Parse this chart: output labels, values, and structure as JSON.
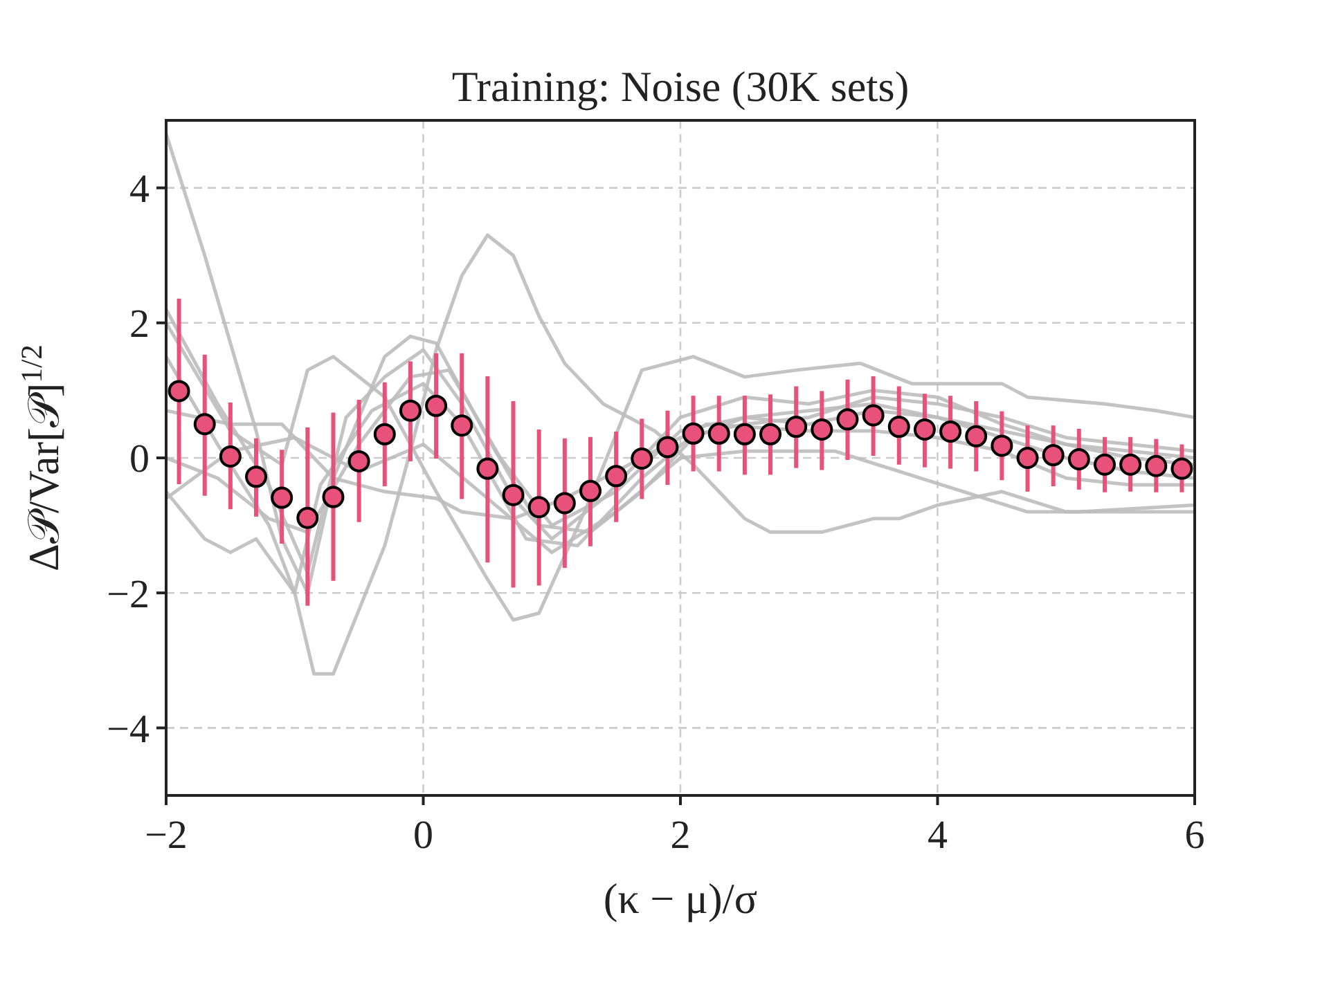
{
  "chart_data": {
    "type": "scatter",
    "title": "Training: Noise (30K sets)",
    "xlabel": "(κ − μ)/σ",
    "ylabel": "Δ𝒫/Var[𝒫]$^{1/2}$",
    "xlim": [
      -2,
      6
    ],
    "ylim": [
      -5,
      5
    ],
    "xticks": [
      {
        "value": -2,
        "label": "−2"
      },
      0,
      2,
      4,
      6
    ],
    "yticks": [
      {
        "value": -4,
        "label": "−4"
      },
      {
        "value": -2,
        "label": "−2"
      },
      0,
      2,
      4
    ],
    "grid": true,
    "series": [
      {
        "type": "line",
        "color": "#bdbdbd",
        "x": [
          -2,
          -1.7,
          -1.3,
          -1.1,
          -0.9,
          -0.7,
          -0.3,
          -0.1,
          0.1,
          0.5,
          0.9,
          1.3,
          1.7,
          2.1,
          2.5,
          3,
          3.5,
          4,
          4.5,
          5,
          5.5,
          6
        ],
        "values": [
          4.8,
          3,
          0.4,
          -1.2,
          -2,
          -0.3,
          1.5,
          1.8,
          1.7,
          0.3,
          -1,
          -1.1,
          -0.5,
          0.3,
          0.6,
          0.7,
          0.8,
          0.6,
          0.4,
          0.2,
          0,
          -0.1
        ]
      },
      {
        "type": "line",
        "color": "#bdbdbd",
        "x": [
          -2,
          -1.7,
          -1.5,
          -1.3,
          -1,
          -0.85,
          -0.7,
          -0.3,
          -0.1,
          0.1,
          0.3,
          0.5,
          0.7,
          0.9,
          1.1,
          1.4,
          1.8,
          2.1,
          2.5,
          2.7,
          3.1,
          3.5,
          3.7,
          4,
          4.5,
          5,
          5.5,
          6
        ],
        "values": [
          -0.5,
          -1.2,
          -1.4,
          -1.2,
          -2,
          -3.2,
          -3.2,
          -1.3,
          0.1,
          1.6,
          2.7,
          3.3,
          3,
          2.1,
          1.4,
          0.8,
          0.4,
          -0.1,
          -0.9,
          -1.1,
          -1.1,
          -0.9,
          -0.9,
          -0.7,
          -0.5,
          -0.8,
          -0.8,
          -0.8
        ]
      },
      {
        "type": "line",
        "color": "#bdbdbd",
        "x": [
          -2,
          -1.5,
          -1.1,
          -0.9,
          -0.7,
          -0.3,
          0.1,
          0.5,
          0.7,
          0.9,
          1.3,
          1.7,
          2.1,
          2.5,
          2.9,
          3.4,
          3.8,
          4.2,
          4.5,
          4.7,
          5.3,
          5.7,
          6
        ],
        "values": [
          2,
          0.4,
          -0.1,
          1.3,
          1.5,
          0.9,
          -0.5,
          -1.8,
          -2.4,
          -2.3,
          -0.6,
          1.3,
          1.5,
          1.2,
          1.3,
          1.4,
          1.1,
          1.1,
          1.1,
          0.9,
          0.8,
          0.7,
          0.6
        ]
      },
      {
        "type": "line",
        "color": "#bdbdbd",
        "x": [
          -2,
          -1.5,
          -1,
          -0.5,
          0,
          0.5,
          1,
          1.5,
          2,
          2.5,
          3.2,
          4.7,
          5.1,
          6
        ],
        "values": [
          -0.6,
          0.1,
          0.3,
          -0.2,
          0.2,
          -0.6,
          -1.4,
          -0.8,
          0,
          0.1,
          0.1,
          -0.8,
          -0.8,
          -0.7
        ]
      },
      {
        "type": "line",
        "color": "#bdbdbd",
        "x": [
          -2,
          -1.5,
          -1.1,
          -0.7,
          -0.3,
          0.1,
          0.3,
          0.7,
          1.1,
          1.5,
          2,
          2.5,
          3,
          3.5,
          4,
          4.5,
          5,
          5.5,
          6
        ],
        "values": [
          0.7,
          0.5,
          0.5,
          -0.3,
          -0.5,
          -0.6,
          -0.8,
          -0.9,
          -0.6,
          -0.2,
          0.3,
          0.5,
          0.6,
          0.9,
          0.8,
          0.6,
          0.3,
          0.2,
          0.1
        ]
      },
      {
        "type": "line",
        "color": "#bdbdbd",
        "x": [
          -2,
          -1.6,
          -1.2,
          -0.9,
          -0.6,
          -0.3,
          0,
          0.3,
          0.7,
          1,
          1.4,
          2,
          2.5,
          3,
          3.5,
          4,
          4.5,
          5,
          5.5,
          6
        ],
        "values": [
          2.2,
          0.8,
          -0.4,
          -1.7,
          0.6,
          1.2,
          1.6,
          0.8,
          -0.6,
          -1.2,
          -0.6,
          0.6,
          0.9,
          0.8,
          1,
          0.9,
          0.5,
          0.2,
          0.1,
          0
        ]
      },
      {
        "type": "line",
        "color": "#bdbdbd",
        "x": [
          -2,
          -1.6,
          -1.2,
          -0.9,
          -0.5,
          -0.1,
          0.2,
          0.6,
          1,
          1.5,
          2,
          2.5,
          3,
          3.5,
          4,
          4.5,
          5,
          5.5,
          6
        ],
        "values": [
          0,
          -0.3,
          -0.9,
          -1.1,
          0.2,
          1.2,
          1.3,
          0,
          -1,
          -0.5,
          0.4,
          0.6,
          0.5,
          0.7,
          0.6,
          0.3,
          0,
          -0.2,
          -0.3
        ]
      },
      {
        "type": "line",
        "color": "#bdbdbd",
        "x": [
          -2,
          -1.6,
          -1.2,
          -1,
          -0.8,
          -0.4,
          0,
          0.3,
          0.8,
          1.2,
          1.7,
          2.2,
          3,
          3.5,
          4,
          4.5,
          5,
          5.5,
          6
        ],
        "values": [
          1.5,
          0.2,
          -1,
          -2,
          -0.4,
          0.7,
          1.1,
          0.5,
          -1.2,
          -1.3,
          -0.3,
          0.5,
          0.4,
          0.4,
          0.3,
          0.1,
          -0.3,
          -0.4,
          -0.4
        ]
      },
      {
        "marker": "circle",
        "color": "#e8527a",
        "x": [
          -1.9,
          -1.7,
          -1.5,
          -1.3,
          -1.1,
          -0.9,
          -0.7,
          -0.5,
          -0.3,
          -0.1,
          0.1,
          0.3,
          0.5,
          0.7,
          0.9,
          1.1,
          1.3,
          1.5,
          1.7,
          1.9,
          2.1,
          2.3,
          2.5,
          2.7,
          2.9,
          3.1,
          3.3,
          3.5,
          3.7,
          3.9,
          4.1,
          4.3,
          4.5,
          4.7,
          4.9,
          5.1,
          5.3,
          5.5,
          5.7,
          5.9
        ],
        "values": [
          0.99,
          0.5,
          0.02,
          -0.28,
          -0.59,
          -0.89,
          -0.58,
          -0.05,
          0.35,
          0.7,
          0.77,
          0.48,
          -0.16,
          -0.55,
          -0.73,
          -0.67,
          -0.49,
          -0.27,
          -0.01,
          0.16,
          0.36,
          0.36,
          0.35,
          0.35,
          0.46,
          0.42,
          0.57,
          0.63,
          0.46,
          0.42,
          0.39,
          0.32,
          0.18,
          0,
          0.04,
          -0.02,
          -0.1,
          -0.1,
          -0.12,
          -0.16
        ],
        "errors": [
          [
            -0.39,
            2.36
          ],
          [
            -0.56,
            1.53
          ],
          [
            -0.76,
            0.82
          ],
          [
            -0.87,
            0.29
          ],
          [
            -1.27,
            0.12
          ],
          [
            -2.19,
            0.45
          ],
          [
            -1.82,
            0.67
          ],
          [
            -0.95,
            0.86
          ],
          [
            -0.42,
            1.12
          ],
          [
            -0.05,
            1.43
          ],
          [
            -0.01,
            1.55
          ],
          [
            -0.61,
            1.55
          ],
          [
            -1.55,
            1.21
          ],
          [
            -1.92,
            0.84
          ],
          [
            -1.89,
            0.42
          ],
          [
            -1.63,
            0.29
          ],
          [
            -1.31,
            0.31
          ],
          [
            -0.95,
            0.39
          ],
          [
            -0.61,
            0.58
          ],
          [
            -0.4,
            0.7
          ],
          [
            -0.2,
            0.92
          ],
          [
            -0.2,
            0.92
          ],
          [
            -0.25,
            0.92
          ],
          [
            -0.25,
            0.94
          ],
          [
            -0.15,
            1.06
          ],
          [
            -0.18,
            0.99
          ],
          [
            -0.03,
            1.16
          ],
          [
            0.03,
            1.21
          ],
          [
            -0.1,
            1.06
          ],
          [
            -0.14,
            0.95
          ],
          [
            -0.16,
            0.92
          ],
          [
            -0.2,
            0.84
          ],
          [
            -0.33,
            0.69
          ],
          [
            -0.5,
            0.48
          ],
          [
            -0.42,
            0.48
          ],
          [
            -0.47,
            0.43
          ],
          [
            -0.51,
            0.31
          ],
          [
            -0.5,
            0.31
          ],
          [
            -0.51,
            0.28
          ],
          [
            -0.51,
            0.2
          ]
        ]
      }
    ]
  }
}
